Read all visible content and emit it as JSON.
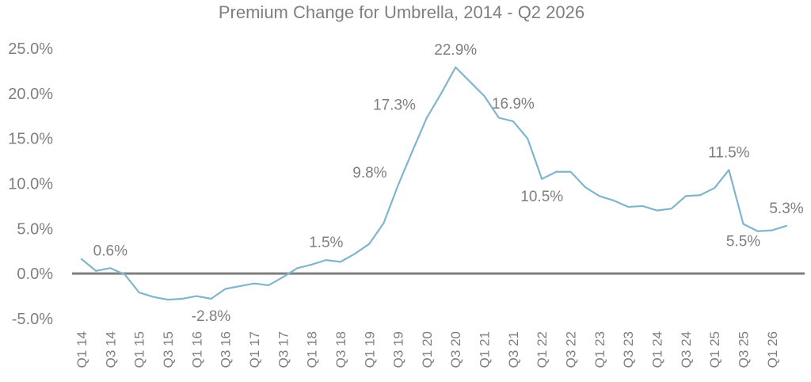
{
  "chart_data": {
    "type": "line",
    "title": "Premium Change for Umbrella, 2014 - Q2 2026",
    "xlabel": "",
    "ylabel": "",
    "ylim": [
      -5,
      25
    ],
    "y_ticks": [
      "25.0%",
      "20.0%",
      "15.0%",
      "10.0%",
      "5.0%",
      "0.0%",
      "-5.0%"
    ],
    "y_tick_values": [
      25,
      20,
      15,
      10,
      5,
      0,
      -5
    ],
    "grid": false,
    "line_color": "#7fb6cc",
    "zero_line_color": "#7f7f7f",
    "text_color": "#7f7f7f",
    "categories": [
      "Q1 14",
      "Q2 14",
      "Q3 14",
      "Q4 14",
      "Q1 15",
      "Q2 15",
      "Q3 15",
      "Q4 15",
      "Q1 16",
      "Q2 16",
      "Q3 16",
      "Q4 16",
      "Q1 17",
      "Q2 17",
      "Q3 17",
      "Q4 17",
      "Q1 18",
      "Q2 18",
      "Q3 18",
      "Q4 18",
      "Q1 19",
      "Q2 19",
      "Q3 19",
      "Q4 19",
      "Q1 20",
      "Q2 20",
      "Q3 20",
      "Q4 20",
      "Q1 21",
      "Q2 21",
      "Q3 21",
      "Q4 21",
      "Q1 22",
      "Q2 22",
      "Q3 22",
      "Q4 22",
      "Q1 23",
      "Q2 23",
      "Q3 23",
      "Q4 23",
      "Q1 24",
      "Q2 24",
      "Q3 24",
      "Q4 24",
      "Q1 25",
      "Q2 25",
      "Q3 25",
      "Q4 25",
      "Q1 26",
      "Q2 26"
    ],
    "x_tick_labels": [
      "Q1 14",
      "Q3 14",
      "Q1 15",
      "Q3 15",
      "Q1 16",
      "Q3 16",
      "Q1 17",
      "Q3 17",
      "Q1 18",
      "Q3 18",
      "Q1 19",
      "Q3 19",
      "Q1 20",
      "Q3 20",
      "Q1 21",
      "Q3 21",
      "Q1 22",
      "Q3 22",
      "Q1 23",
      "Q3 23",
      "Q1 24",
      "Q3 24",
      "Q1 25",
      "Q3 25",
      "Q1 26"
    ],
    "series": [
      {
        "values": [
          1.6,
          0.3,
          0.6,
          -0.1,
          -2.1,
          -2.6,
          -2.9,
          -2.8,
          -2.5,
          -2.8,
          -1.7,
          -1.4,
          -1.1,
          -1.3,
          -0.4,
          0.6,
          1.0,
          1.5,
          1.3,
          2.2,
          3.3,
          5.6,
          9.8,
          13.6,
          17.3,
          20.0,
          22.9,
          21.3,
          19.7,
          17.3,
          16.9,
          15.0,
          10.5,
          11.3,
          11.3,
          9.6,
          8.6,
          8.1,
          7.4,
          7.5,
          7.0,
          7.2,
          8.6,
          8.7,
          9.5,
          11.5,
          5.5,
          4.7,
          4.8,
          5.3
        ]
      }
    ],
    "data_labels": [
      {
        "index": 2,
        "text": "0.6%",
        "position": "above"
      },
      {
        "index": 9,
        "text": "-2.8%",
        "position": "below"
      },
      {
        "index": 17,
        "text": "1.5%",
        "position": "above"
      },
      {
        "index": 22,
        "text": "9.8%",
        "position": "left"
      },
      {
        "index": 24,
        "text": "17.3%",
        "position": "left"
      },
      {
        "index": 26,
        "text": "22.9%",
        "position": "above"
      },
      {
        "index": 30,
        "text": "16.9%",
        "position": "above"
      },
      {
        "index": 32,
        "text": "10.5%",
        "position": "below"
      },
      {
        "index": 45,
        "text": "11.5%",
        "position": "above"
      },
      {
        "index": 46,
        "text": "5.5%",
        "position": "below"
      },
      {
        "index": 49,
        "text": "5.3%",
        "position": "above"
      }
    ]
  }
}
